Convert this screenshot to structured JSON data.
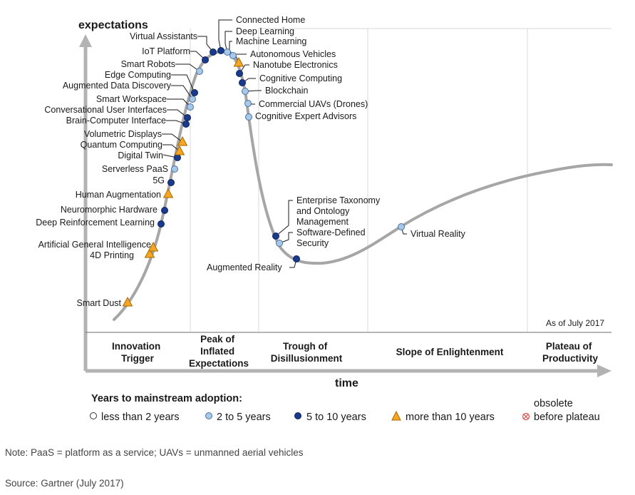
{
  "chart_data": {
    "type": "scatter",
    "y_axis_label": "expectations",
    "x_axis_label": "time",
    "as_of": "As of July 2017",
    "phases": [
      {
        "lines": [
          "Innovation",
          "Trigger"
        ]
      },
      {
        "lines": [
          "Peak of",
          "Inflated",
          "Expectations"
        ]
      },
      {
        "lines": [
          "Trough of",
          "Disillusionment"
        ]
      },
      {
        "lines": [
          "Slope of Enlightenment"
        ]
      },
      {
        "lines": [
          "Plateau of",
          "Productivity"
        ]
      }
    ],
    "categories": {
      "lt2": {
        "label": "less than 2 years",
        "fill": "#ffffff"
      },
      "2to5": {
        "label": "2 to 5 years",
        "fill": "#a7c8e6"
      },
      "5to10": {
        "label": "5 to 10 years",
        "fill": "#1a3a8c"
      },
      "gt10": {
        "label": "more than 10 years",
        "fill": "#f5a623"
      },
      "obsolete": {
        "label": [
          "obsolete",
          "before plateau"
        ],
        "color": "#d9534f"
      }
    },
    "legend_title": "Years to mainstream adoption:",
    "technologies": [
      {
        "name": "Smart Dust",
        "category": "gt10"
      },
      {
        "name": "4D Printing",
        "category": "gt10"
      },
      {
        "name": "Artificial General Intelligence",
        "category": "gt10"
      },
      {
        "name": "Deep Reinforcement Learning",
        "category": "5to10"
      },
      {
        "name": "Neuromorphic Hardware",
        "category": "5to10"
      },
      {
        "name": "Human Augmentation",
        "category": "gt10"
      },
      {
        "name": "5G",
        "category": "5to10"
      },
      {
        "name": "Serverless PaaS",
        "category": "2to5"
      },
      {
        "name": "Digital Twin",
        "category": "5to10"
      },
      {
        "name": "Quantum Computing",
        "category": "gt10"
      },
      {
        "name": "Volumetric Displays",
        "category": "gt10"
      },
      {
        "name": "Brain-Computer Interface",
        "category": "5to10"
      },
      {
        "name": "Conversational User Interfaces",
        "category": "5to10"
      },
      {
        "name": "Smart Workspace",
        "category": "2to5"
      },
      {
        "name": "Augmented Data Discovery",
        "category": "2to5"
      },
      {
        "name": "Edge Computing",
        "category": "5to10"
      },
      {
        "name": "Smart Robots",
        "category": "2to5"
      },
      {
        "name": "IoT Platform",
        "category": "5to10"
      },
      {
        "name": "Virtual Assistants",
        "category": "5to10"
      },
      {
        "name": "Connected Home",
        "category": "5to10"
      },
      {
        "name": "Deep Learning",
        "category": "2to5"
      },
      {
        "name": "Machine Learning",
        "category": "2to5"
      },
      {
        "name": "Autonomous Vehicles",
        "category": "gt10"
      },
      {
        "name": "Nanotube Electronics",
        "category": "5to10"
      },
      {
        "name": "Cognitive Computing",
        "category": "5to10"
      },
      {
        "name": "Blockchain",
        "category": "2to5"
      },
      {
        "name": "Commercial UAVs (Drones)",
        "category": "2to5"
      },
      {
        "name": "Cognitive Expert Advisors",
        "category": "2to5"
      },
      {
        "name": [
          "Enterprise Taxonomy",
          "and Ontology",
          "Management"
        ],
        "category": "5to10"
      },
      {
        "name": [
          "Software-Defined",
          "Security"
        ],
        "category": "2to5"
      },
      {
        "name": "Augmented Reality",
        "category": "5to10"
      },
      {
        "name": "Virtual Reality",
        "category": "2to5"
      }
    ]
  },
  "note": "Note: PaaS = platform as a service; UAVs = unmanned aerial vehicles",
  "source": "Source: Gartner (July 2017)"
}
